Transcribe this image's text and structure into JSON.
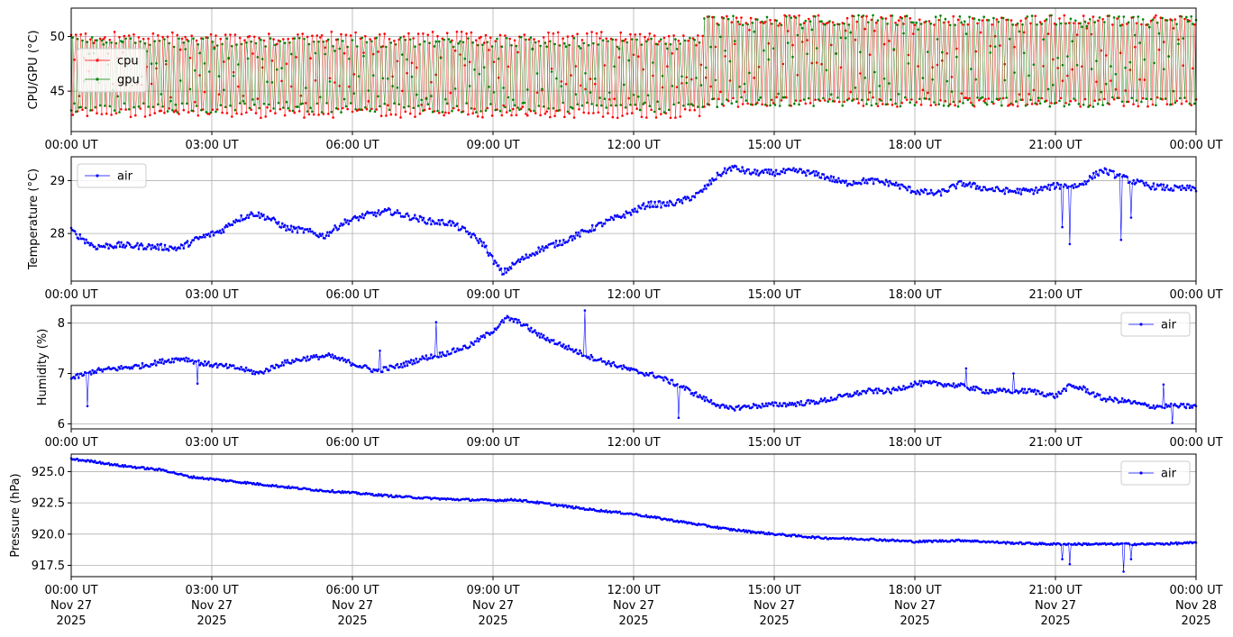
{
  "colors": {
    "cpu": "#ff0000",
    "gpu": "#008000",
    "air": "#0000ff",
    "grid": "#b0b0b0",
    "axis": "#000000"
  },
  "x_ticks": [
    "00:00 UT",
    "03:00 UT",
    "06:00 UT",
    "09:00 UT",
    "12:00 UT",
    "15:00 UT",
    "18:00 UT",
    "21:00 UT",
    "00:00 UT"
  ],
  "x_tick_dates_bottom": [
    [
      "Nov 27",
      "2025"
    ],
    [
      "Nov 27",
      "2025"
    ],
    [
      "Nov 27",
      "2025"
    ],
    [
      "Nov 27",
      "2025"
    ],
    [
      "Nov 27",
      "2025"
    ],
    [
      "Nov 27",
      "2025"
    ],
    [
      "Nov 27",
      "2025"
    ],
    [
      "Nov 27",
      "2025"
    ],
    [
      "Nov 28",
      "2025"
    ]
  ],
  "chart_data": [
    {
      "type": "line",
      "ylabel": "CPU/GPU (°C)",
      "xlim_hours": [
        0,
        24
      ],
      "ylim": [
        41.3,
        52.6
      ],
      "yticks": [
        45,
        50
      ],
      "ytick_labels": [
        "45",
        "50"
      ],
      "grid": true,
      "legend_position": "upper-left",
      "series": [
        {
          "name": "cpu",
          "color": "#ff0000",
          "pattern": "oscillating between ~43 and ~50 °C; ~44–50 until 13:30 UT, then ~44–51.5 until 24:00 UT",
          "range_before_1330": [
            43.0,
            50.0
          ],
          "range_after_1330": [
            44.0,
            51.5
          ]
        },
        {
          "name": "gpu",
          "color": "#008000",
          "pattern": "oscillating between ~43.5 and ~49.5 °C; ~44–49.5 until 13:30 UT, then ~44–51.5 until 24:00 UT",
          "range_before_1330": [
            43.5,
            49.5
          ],
          "range_after_1330": [
            44.0,
            51.5
          ]
        }
      ]
    },
    {
      "type": "line",
      "ylabel": "Temperature (°C)",
      "xlim_hours": [
        0,
        24
      ],
      "ylim": [
        27.1,
        29.45
      ],
      "yticks": [
        28,
        29
      ],
      "ytick_labels": [
        "28",
        "29"
      ],
      "grid": true,
      "legend_position": "upper-left",
      "series": [
        {
          "name": "air",
          "color": "#0000ff",
          "x_hours": [
            0,
            0.5,
            1,
            1.5,
            2,
            2.3,
            2.7,
            3.2,
            3.5,
            3.9,
            4.2,
            4.6,
            5,
            5.4,
            5.8,
            6.3,
            6.8,
            7.3,
            7.7,
            8.1,
            8.5,
            8.8,
            9.0,
            9.2,
            9.5,
            10,
            10.5,
            11,
            11.5,
            12,
            12.3,
            12.7,
            13,
            13.4,
            13.8,
            14.1,
            14.5,
            15,
            15.5,
            16,
            16.5,
            17,
            17.5,
            18,
            18.5,
            19,
            19.5,
            20,
            20.5,
            21,
            21.5,
            22,
            22.3,
            22.6,
            23,
            23.5,
            24
          ],
          "y": [
            28.05,
            27.75,
            27.78,
            27.76,
            27.74,
            27.72,
            27.9,
            28.05,
            28.25,
            28.38,
            28.3,
            28.1,
            28.05,
            27.95,
            28.2,
            28.35,
            28.42,
            28.3,
            28.22,
            28.2,
            28.0,
            27.8,
            27.5,
            27.25,
            27.45,
            27.7,
            27.85,
            28.05,
            28.25,
            28.42,
            28.55,
            28.55,
            28.6,
            28.75,
            29.1,
            29.25,
            29.15,
            29.15,
            29.18,
            29.1,
            28.95,
            29.0,
            28.95,
            28.8,
            28.75,
            28.95,
            28.85,
            28.8,
            28.8,
            28.9,
            28.9,
            29.2,
            29.1,
            29.0,
            28.9,
            28.85,
            28.85
          ],
          "dips": [
            {
              "x_hour": 21.15,
              "y": 28.12
            },
            {
              "x_hour": 21.3,
              "y": 27.8
            },
            {
              "x_hour": 22.4,
              "y": 27.88
            },
            {
              "x_hour": 22.6,
              "y": 28.3
            }
          ]
        }
      ]
    },
    {
      "type": "line",
      "ylabel": "Humidity (%)",
      "xlim_hours": [
        0,
        24
      ],
      "ylim": [
        5.9,
        8.35
      ],
      "yticks": [
        6,
        7,
        8
      ],
      "ytick_labels": [
        "6",
        "7",
        "8"
      ],
      "grid": true,
      "legend_position": "upper-right",
      "series": [
        {
          "name": "air",
          "color": "#0000ff",
          "x_hours": [
            0,
            0.5,
            1,
            1.5,
            2,
            2.4,
            2.8,
            3.2,
            3.6,
            4.0,
            4.5,
            5,
            5.5,
            6,
            6.5,
            7,
            7.5,
            8,
            8.5,
            9,
            9.3,
            9.6,
            10,
            10.5,
            11,
            11.5,
            12,
            12.5,
            13,
            13.5,
            14,
            14.5,
            15,
            15.5,
            16,
            16.5,
            17,
            17.5,
            18,
            18.5,
            19,
            19.5,
            20,
            20.5,
            21,
            21.3,
            21.6,
            22,
            22.5,
            23,
            23.5,
            24
          ],
          "y": [
            6.9,
            7.05,
            7.1,
            7.15,
            7.25,
            7.3,
            7.2,
            7.15,
            7.1,
            7.0,
            7.2,
            7.3,
            7.35,
            7.2,
            7.05,
            7.15,
            7.3,
            7.4,
            7.55,
            7.85,
            8.1,
            8.0,
            7.75,
            7.55,
            7.35,
            7.2,
            7.05,
            6.95,
            6.75,
            6.5,
            6.3,
            6.35,
            6.38,
            6.4,
            6.45,
            6.55,
            6.65,
            6.65,
            6.8,
            6.8,
            6.75,
            6.65,
            6.65,
            6.65,
            6.55,
            6.75,
            6.7,
            6.5,
            6.45,
            6.35,
            6.35,
            6.35
          ],
          "spikes": [
            {
              "x_hour": 0.35,
              "y": 6.35
            },
            {
              "x_hour": 2.7,
              "y": 6.8
            },
            {
              "x_hour": 6.6,
              "y": 7.45
            },
            {
              "x_hour": 7.8,
              "y": 8.02
            },
            {
              "x_hour": 10.95,
              "y": 8.25
            },
            {
              "x_hour": 12.95,
              "y": 6.12
            },
            {
              "x_hour": 19.1,
              "y": 7.1
            },
            {
              "x_hour": 20.1,
              "y": 7.0
            },
            {
              "x_hour": 23.3,
              "y": 6.78
            },
            {
              "x_hour": 23.5,
              "y": 6.02
            }
          ]
        }
      ]
    },
    {
      "type": "line",
      "ylabel": "Pressure (hPa)",
      "xlim_hours": [
        0,
        24
      ],
      "ylim": [
        916.6,
        926.4
      ],
      "yticks": [
        917.5,
        920.0,
        922.5,
        925.0
      ],
      "ytick_labels": [
        "917.5",
        "920.0",
        "922.5",
        "925.0"
      ],
      "grid": true,
      "legend_position": "upper-right",
      "series": [
        {
          "name": "air",
          "color": "#0000ff",
          "x_hours": [
            0,
            0.5,
            1,
            1.5,
            2,
            2.5,
            3,
            4,
            5,
            6,
            7,
            8,
            9,
            9.5,
            10,
            11,
            12,
            13,
            14,
            15,
            16,
            17,
            18,
            19,
            20,
            21,
            22,
            23,
            24
          ],
          "y": [
            926.0,
            925.8,
            925.5,
            925.3,
            925.1,
            924.6,
            924.4,
            924.0,
            923.6,
            923.3,
            923.0,
            922.8,
            922.7,
            922.75,
            922.5,
            922.0,
            921.6,
            921.0,
            920.4,
            920.0,
            919.7,
            919.6,
            919.4,
            919.5,
            919.3,
            919.2,
            919.2,
            919.2,
            919.3
          ],
          "dips": [
            {
              "x_hour": 21.15,
              "y": 918.0
            },
            {
              "x_hour": 21.3,
              "y": 917.6
            },
            {
              "x_hour": 22.45,
              "y": 917.0
            },
            {
              "x_hour": 22.6,
              "y": 918.0
            }
          ]
        }
      ]
    }
  ]
}
